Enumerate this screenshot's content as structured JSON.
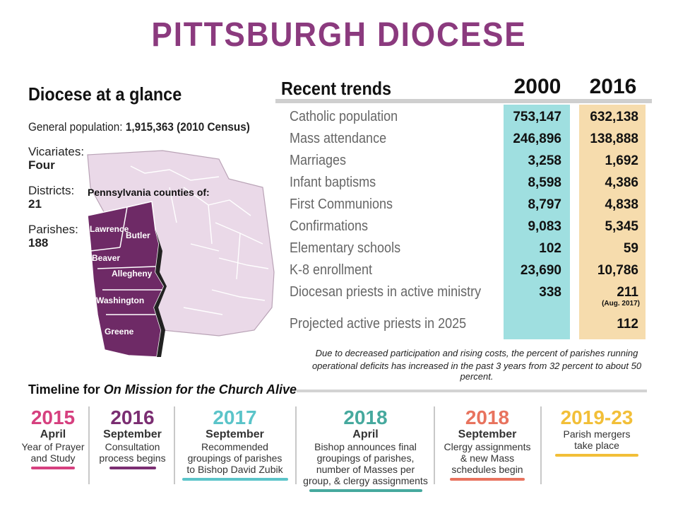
{
  "title": "PITTSBURGH DIOCESE",
  "glance": {
    "heading": "Diocese at a glance",
    "population_label": "General population:",
    "population_value": "1,915,363 (2010 Census)",
    "vicariates_label": "Vicariates:",
    "vicariates_value": "Four",
    "districts_label": "Districts:",
    "districts_value": "21",
    "parishes_label": "Parishes:",
    "parishes_value": "188"
  },
  "map": {
    "heading": "Pennsylvania counties of:",
    "counties": [
      "Lawrence",
      "Butler",
      "Beaver",
      "Allegheny",
      "Washington",
      "Greene"
    ],
    "highlight_color": "#6e2a66",
    "state_color": "#ead9e8"
  },
  "chart_data": {
    "type": "table",
    "title": "Recent trends",
    "columns": [
      "2000",
      "2016"
    ],
    "column_colors": [
      "#9fdfe0",
      "#f6dcad"
    ],
    "rows": [
      {
        "label": "Catholic population",
        "v2000": "753,147",
        "v2016": "632,138"
      },
      {
        "label": "Mass attendance",
        "v2000": "246,896",
        "v2016": "138,888"
      },
      {
        "label": "Marriages",
        "v2000": "3,258",
        "v2016": "1,692"
      },
      {
        "label": "Infant baptisms",
        "v2000": "8,598",
        "v2016": "4,386"
      },
      {
        "label": "First Communions",
        "v2000": "8,797",
        "v2016": "4,838"
      },
      {
        "label": "Confirmations",
        "v2000": "9,083",
        "v2016": "5,345"
      },
      {
        "label": "Elementary schools",
        "v2000": "102",
        "v2016": "59"
      },
      {
        "label": "K-8 enrollment",
        "v2000": "23,690",
        "v2016": "10,786"
      },
      {
        "label": "Diocesan priests in active ministry",
        "v2000": "338",
        "v2016": "211",
        "v2016_note": "(Aug. 2017)"
      },
      {
        "label": "Projected active priests in 2025",
        "v2000": "",
        "v2016": "112"
      }
    ],
    "note_line1": "Due to decreased participation and rising costs, the percent of parishes running",
    "note_line2": "operational deficits has increased in the past 3 years from 32 percent to about 50 percent."
  },
  "timeline": {
    "heading_prefix": "Timeline for ",
    "heading_italic": "On Mission for the Church Alive",
    "items": [
      {
        "year": "2015",
        "month": "April",
        "desc": [
          "Year of Prayer",
          "and Study"
        ],
        "color": "#d6407f"
      },
      {
        "year": "2016",
        "month": "September",
        "desc": [
          "Consultation",
          "process begins"
        ],
        "color": "#7b2e72"
      },
      {
        "year": "2017",
        "month": "September",
        "desc": [
          "Recommended",
          "groupings of parishes",
          "to Bishop David Zubik"
        ],
        "color": "#5bc4c9"
      },
      {
        "year": "2018",
        "month": "April",
        "desc": [
          "Bishop announces final",
          "groupings of parishes,",
          "number of Masses per",
          "group, & clergy assignments"
        ],
        "color": "#46a99e"
      },
      {
        "year": "2018",
        "month": "September",
        "desc": [
          "Clergy assignments",
          "& new Mass",
          "schedules begin"
        ],
        "color": "#e8735e"
      },
      {
        "year": "2019-23",
        "month": "",
        "desc": [
          "Parish mergers",
          "take place"
        ],
        "color": "#f2bf38"
      }
    ]
  }
}
